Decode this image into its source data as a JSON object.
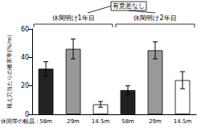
{
  "chart_data": {
    "type": "bar",
    "ylabel": "植え穴当たりの被害率(%/m)",
    "xlabel": "休閑帯の幅員：",
    "categories": [
      "58m",
      "29m",
      "14.5m",
      "58m",
      "29m",
      "14.5m"
    ],
    "values": [
      32,
      46,
      7,
      17,
      45,
      24
    ],
    "errors": [
      5,
      7,
      2,
      3,
      6,
      6
    ],
    "colors": [
      "#222222",
      "#999999",
      "#ffffff",
      "#222222",
      "#999999",
      "#ffffff"
    ],
    "groups": [
      "休閑明け1年目",
      "休閑明け2年目"
    ],
    "annotation": "有意差なし",
    "ylim": [
      0,
      60
    ],
    "yticks": [
      0,
      20,
      40,
      60
    ],
    "grid": false,
    "data_labels": false
  }
}
